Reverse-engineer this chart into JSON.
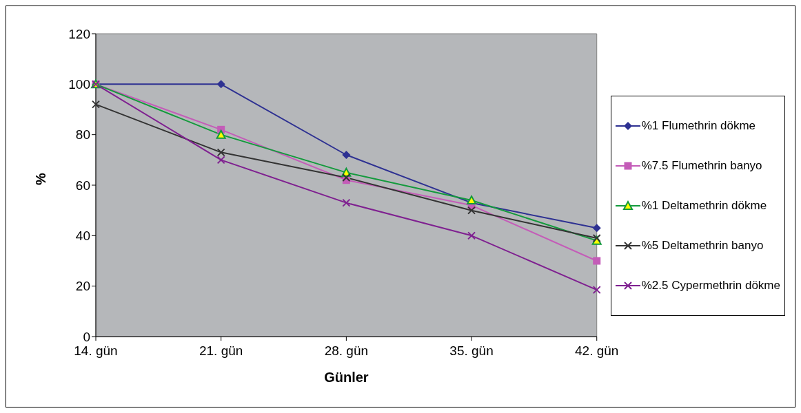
{
  "chart_data": {
    "type": "line",
    "xlabel": "Günler",
    "ylabel": "%",
    "categories": [
      "14. gün",
      "21. gün",
      "28. gün",
      "35. gün",
      "42. gün"
    ],
    "series": [
      {
        "name": "%1 Flumethrin dökme",
        "color": "#2e3192",
        "marker": "diamond",
        "values": [
          100,
          100,
          72,
          53,
          43
        ]
      },
      {
        "name": "%7.5 Flumethrin banyo",
        "color": "#c45cb8",
        "marker": "square",
        "values": [
          100,
          82,
          62,
          52,
          30
        ]
      },
      {
        "name": "%1 Deltamethrin dökme",
        "color": "#139a3c",
        "marker": "triangle",
        "values": [
          100,
          80,
          65,
          54,
          38
        ]
      },
      {
        "name": "%5 Deltamethrin banyo",
        "color": "#333333",
        "marker": "cross",
        "values": [
          92,
          73,
          63,
          50,
          39
        ]
      },
      {
        "name": "%2.5 Cypermethrin dökme",
        "color": "#7f2090",
        "marker": "cross",
        "values": [
          100,
          70,
          53,
          40,
          18.5
        ]
      }
    ],
    "ylim": [
      0,
      120
    ],
    "yticks": [
      0,
      20,
      40,
      60,
      80,
      100,
      120
    ],
    "grid": false,
    "legend": "right",
    "line_style": "solid"
  }
}
